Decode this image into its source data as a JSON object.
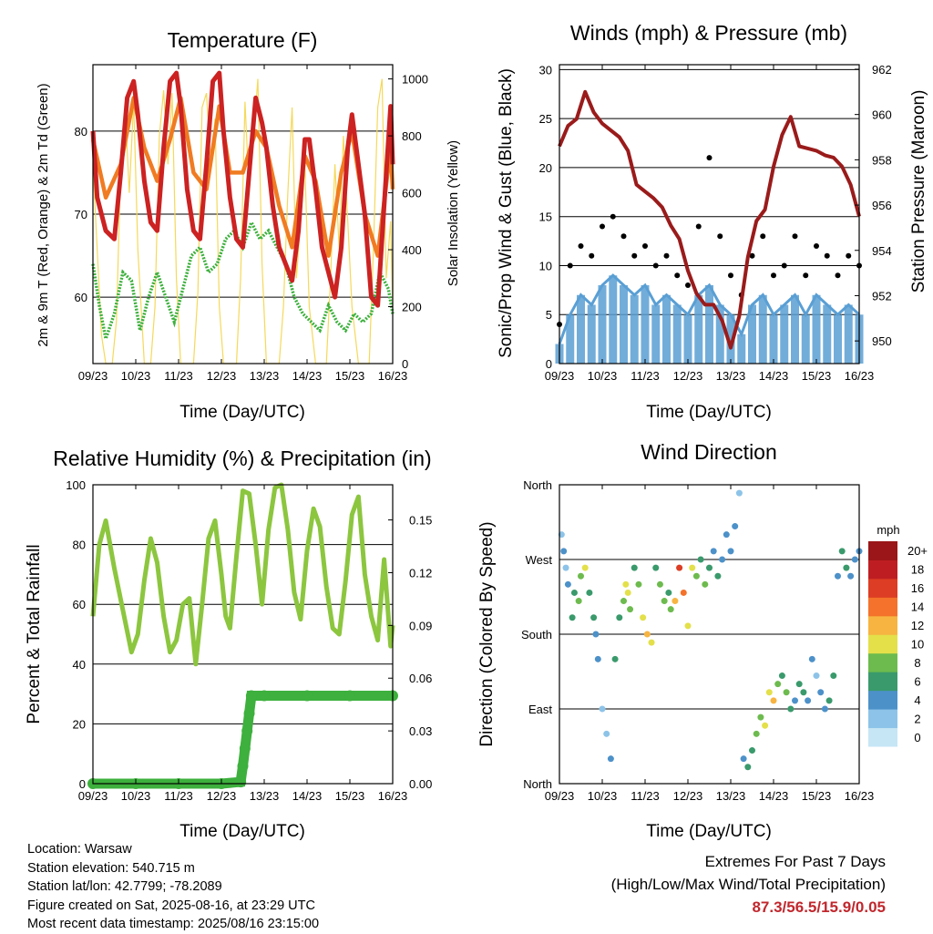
{
  "chart_data": [
    {
      "type": "line",
      "title": "Temperature (F)",
      "xlabel": "Time (Day/UTC)",
      "ylabel": "2m & 9m T (Red, Orange) & 2m Td (Green)",
      "ylabel_right": "Solar Insolation (Yellow)",
      "xticks": [
        "09/23",
        "10/23",
        "11/23",
        "12/23",
        "13/23",
        "14/23",
        "15/23",
        "16/23"
      ],
      "ylim": [
        52,
        88
      ],
      "yticks": [
        60,
        70,
        80
      ],
      "ylim_right": [
        0,
        1050
      ],
      "yticks_right": [
        0,
        200,
        400,
        600,
        800,
        1000
      ],
      "colors": {
        "t2m": "#cc2222",
        "t9m": "#f07b22",
        "td2m": "#3db03d",
        "solar": "#f5d95a"
      },
      "series": [
        {
          "name": "2m T",
          "x": [
            0,
            0.1,
            0.3,
            0.5,
            0.65,
            0.8,
            0.95,
            1.05,
            1.2,
            1.35,
            1.5,
            1.65,
            1.8,
            1.95,
            2.05,
            2.2,
            2.35,
            2.5,
            2.65,
            2.8,
            2.95,
            3.05,
            3.2,
            3.35,
            3.5,
            3.65,
            3.8,
            3.95,
            4.05,
            4.2,
            4.35,
            4.5,
            4.65,
            4.8,
            4.95,
            5.05,
            5.2,
            5.35,
            5.5,
            5.65,
            5.8,
            5.95,
            6.05,
            6.2,
            6.35,
            6.5,
            6.65,
            6.8,
            6.95,
            7.0
          ],
          "y": [
            80,
            72,
            68,
            67,
            75,
            84,
            86,
            82,
            74,
            69,
            68,
            78,
            86,
            87,
            83,
            73,
            68,
            67,
            76,
            86,
            87,
            80,
            72,
            67,
            66,
            75,
            84,
            81,
            78,
            71,
            66,
            64,
            62,
            68,
            79,
            79,
            73,
            66,
            63,
            60,
            66,
            78,
            82,
            76,
            70,
            60,
            59,
            71,
            83,
            76
          ]
        },
        {
          "name": "9m T",
          "x": [
            0,
            0.3,
            0.65,
            0.95,
            1.2,
            1.5,
            1.8,
            2.05,
            2.35,
            2.65,
            2.95,
            3.2,
            3.5,
            3.8,
            4.05,
            4.35,
            4.65,
            4.95,
            5.2,
            5.5,
            5.8,
            6.05,
            6.35,
            6.65,
            6.95,
            7.0
          ],
          "y": [
            79,
            72,
            76,
            84,
            78,
            74,
            79,
            84,
            75,
            73,
            83,
            75,
            75,
            80,
            78,
            71,
            66,
            77,
            74,
            65,
            75,
            80,
            70,
            65,
            78,
            73
          ]
        },
        {
          "name": "2m Td",
          "x": [
            0,
            0.15,
            0.3,
            0.5,
            0.7,
            0.9,
            1.1,
            1.3,
            1.5,
            1.7,
            1.9,
            2.1,
            2.3,
            2.5,
            2.7,
            2.9,
            3.1,
            3.3,
            3.5,
            3.7,
            3.9,
            4.1,
            4.3,
            4.5,
            4.7,
            4.9,
            5.1,
            5.3,
            5.5,
            5.7,
            5.9,
            6.1,
            6.3,
            6.5,
            6.7,
            6.9,
            7.0
          ],
          "y": [
            64,
            59,
            55,
            58,
            63,
            62,
            56,
            60,
            63,
            60,
            57,
            61,
            65,
            66,
            63,
            64,
            67,
            68,
            66,
            69,
            67,
            68,
            66,
            64,
            60,
            58,
            57,
            56,
            59,
            57,
            56,
            58,
            57,
            58,
            63,
            61,
            58
          ]
        },
        {
          "name": "Solar Insolation",
          "x": [
            0,
            0.1,
            0.2,
            0.3,
            0.45,
            0.55,
            0.65,
            0.75,
            0.85,
            0.95,
            1.05,
            1.2,
            1.35,
            1.45,
            1.55,
            1.65,
            1.75,
            1.85,
            1.95,
            2.05,
            2.2,
            2.35,
            2.45,
            2.55,
            2.65,
            2.75,
            2.85,
            2.95,
            3.05,
            3.2,
            3.35,
            3.45,
            3.55,
            3.65,
            3.75,
            3.85,
            3.95,
            4.05,
            4.2,
            4.35,
            4.45,
            4.55,
            4.65,
            4.75,
            4.85,
            4.95,
            5.05,
            5.2,
            5.35,
            5.45,
            5.55,
            5.65,
            5.75,
            5.85,
            5.95,
            6.05,
            6.2,
            6.35,
            6.45,
            6.55,
            6.65,
            6.75,
            6.85,
            6.95,
            7.0
          ],
          "y": [
            700,
            400,
            100,
            0,
            0,
            150,
            700,
            900,
            600,
            920,
            400,
            0,
            0,
            200,
            800,
            960,
            700,
            950,
            300,
            0,
            0,
            0,
            250,
            900,
            950,
            700,
            860,
            200,
            0,
            0,
            0,
            300,
            920,
            600,
            800,
            1000,
            350,
            0,
            0,
            0,
            200,
            600,
            900,
            300,
            500,
            700,
            200,
            0,
            0,
            0,
            300,
            700,
            400,
            800,
            500,
            200,
            0,
            0,
            0,
            400,
            900,
            1000,
            300,
            500,
            200
          ]
        }
      ]
    },
    {
      "type": "line",
      "title": "Winds (mph) & Pressure (mb)",
      "xlabel": "Time (Day/UTC)",
      "ylabel": "Sonic/Prop Wind & Gust (Blue, Black)",
      "ylabel_right": "Station Pressure (Maroon)",
      "xticks": [
        "09/23",
        "10/23",
        "11/23",
        "12/23",
        "13/23",
        "14/23",
        "15/23",
        "16/23"
      ],
      "ylim": [
        0,
        30.5
      ],
      "yticks": [
        0,
        5,
        10,
        15,
        20,
        25,
        30
      ],
      "ylim_right": [
        949,
        962.2
      ],
      "yticks_right": [
        950,
        952,
        954,
        956,
        958,
        960,
        962
      ],
      "colors": {
        "wind": "#5a9fd4",
        "gust": "#000000",
        "pressure": "#9a1b1b"
      },
      "series": [
        {
          "name": "Wind",
          "x": [
            0,
            0.25,
            0.5,
            0.75,
            1.0,
            1.25,
            1.5,
            1.75,
            2.0,
            2.25,
            2.5,
            2.75,
            3.0,
            3.25,
            3.5,
            3.75,
            4.0,
            4.25,
            4.5,
            4.75,
            5.0,
            5.25,
            5.5,
            5.75,
            6.0,
            6.25,
            6.5,
            6.75,
            7.0
          ],
          "y": [
            2,
            5,
            7,
            6,
            8,
            9,
            8,
            7,
            8,
            6,
            7,
            6,
            5,
            7,
            8,
            6,
            5,
            3,
            6,
            7,
            5,
            6,
            7,
            5,
            7,
            6,
            5,
            6,
            5
          ]
        },
        {
          "name": "Gust",
          "x": [
            0,
            0.25,
            0.5,
            0.75,
            1.0,
            1.25,
            1.5,
            1.75,
            2.0,
            2.25,
            2.5,
            2.75,
            3.0,
            3.25,
            3.5,
            3.75,
            4.0,
            4.25,
            4.5,
            4.75,
            5.0,
            5.25,
            5.5,
            5.75,
            6.0,
            6.25,
            6.5,
            6.75,
            7.0
          ],
          "y": [
            4,
            10,
            12,
            11,
            14,
            15,
            13,
            11,
            12,
            10,
            11,
            9,
            8,
            14,
            21,
            13,
            9,
            7,
            11,
            13,
            9,
            10,
            13,
            9,
            12,
            11,
            9,
            11,
            10
          ]
        },
        {
          "name": "Pressure",
          "x": [
            0,
            0.2,
            0.4,
            0.6,
            0.8,
            1.0,
            1.2,
            1.4,
            1.6,
            1.8,
            2.0,
            2.2,
            2.4,
            2.6,
            2.8,
            3.0,
            3.2,
            3.4,
            3.6,
            3.8,
            4.0,
            4.2,
            4.4,
            4.6,
            4.8,
            5.0,
            5.2,
            5.4,
            5.6,
            5.8,
            6.0,
            6.2,
            6.4,
            6.6,
            6.8,
            7.0
          ],
          "y": [
            958.6,
            959.5,
            959.8,
            961.0,
            960.1,
            959.6,
            959.3,
            959.0,
            958.4,
            956.9,
            956.6,
            956.3,
            955.9,
            955.1,
            954.5,
            953.1,
            952.1,
            951.6,
            951.6,
            950.9,
            949.7,
            951.1,
            953.7,
            955.3,
            955.8,
            957.7,
            959.1,
            959.9,
            958.6,
            958.5,
            958.4,
            958.2,
            958.1,
            957.7,
            956.9,
            955.5
          ]
        }
      ]
    },
    {
      "type": "line",
      "title": "Relative Humidity (%) & Precipitation (in)",
      "xlabel": "Time (Day/UTC)",
      "ylabel": "Percent & Total Rainfall",
      "xticks": [
        "09/23",
        "10/23",
        "11/23",
        "12/23",
        "13/23",
        "14/23",
        "15/23",
        "16/23"
      ],
      "ylim": [
        0,
        100
      ],
      "yticks": [
        0,
        20,
        40,
        60,
        80,
        100
      ],
      "ylim_right": [
        0,
        0.17
      ],
      "yticks_right": [
        "0.00",
        "0.03",
        "0.06",
        "0.09",
        "0.12",
        "0.15"
      ],
      "colors": {
        "rh": "#8cc63f",
        "precip": "#3db03d"
      },
      "series": [
        {
          "name": "Relative Humidity",
          "x": [
            0,
            0.15,
            0.3,
            0.5,
            0.7,
            0.9,
            1.05,
            1.2,
            1.35,
            1.5,
            1.65,
            1.8,
            1.95,
            2.1,
            2.25,
            2.4,
            2.55,
            2.7,
            2.85,
            3.0,
            3.1,
            3.2,
            3.35,
            3.5,
            3.65,
            3.8,
            3.95,
            4.1,
            4.25,
            4.4,
            4.55,
            4.7,
            4.85,
            5.0,
            5.15,
            5.3,
            5.45,
            5.6,
            5.75,
            5.9,
            6.05,
            6.2,
            6.35,
            6.5,
            6.65,
            6.8,
            6.95,
            7.0
          ],
          "y": [
            56,
            80,
            88,
            72,
            58,
            44,
            50,
            68,
            82,
            74,
            56,
            44,
            48,
            60,
            62,
            40,
            60,
            82,
            88,
            70,
            56,
            52,
            76,
            98,
            97,
            80,
            60,
            85,
            99,
            100,
            85,
            64,
            55,
            78,
            92,
            86,
            66,
            52,
            50,
            68,
            90,
            96,
            70,
            56,
            48,
            75,
            46,
            53
          ]
        },
        {
          "name": "Precipitation",
          "x": [
            0,
            1.0,
            2.0,
            3.0,
            3.45,
            3.5,
            3.55,
            3.6,
            3.65,
            3.7,
            4.0,
            5.0,
            6.0,
            7.0
          ],
          "y": [
            0,
            0,
            0,
            0,
            0.001,
            0.01,
            0.02,
            0.03,
            0.04,
            0.05,
            0.05,
            0.05,
            0.05,
            0.05
          ]
        }
      ]
    },
    {
      "type": "scatter",
      "title": "Wind Direction",
      "xlabel": "Time (Day/UTC)",
      "ylabel": "Direction (Colored By Speed)",
      "xticks": [
        "09/23",
        "10/23",
        "11/23",
        "12/23",
        "13/23",
        "14/23",
        "15/23",
        "16/23"
      ],
      "ylim": [
        0,
        360
      ],
      "yticks": [
        "North",
        "East",
        "South",
        "West",
        "North"
      ],
      "colorbar": {
        "title": "mph",
        "labels": [
          "0",
          "2",
          "4",
          "6",
          "8",
          "10",
          "12",
          "14",
          "16",
          "18",
          "20+"
        ],
        "colors": [
          "#c6e6f5",
          "#8dc3e8",
          "#4d91c9",
          "#3a9a6c",
          "#6dbb4e",
          "#e3e04a",
          "#f7b441",
          "#f4722b",
          "#dc3d24",
          "#be1e22",
          "#9a1618"
        ]
      },
      "x": [
        0.05,
        0.1,
        0.15,
        0.2,
        0.3,
        0.35,
        0.45,
        0.5,
        0.6,
        0.7,
        0.8,
        0.85,
        0.9,
        1.0,
        1.1,
        1.2,
        1.3,
        1.4,
        1.5,
        1.55,
        1.6,
        1.65,
        1.75,
        1.85,
        1.95,
        2.05,
        2.15,
        2.25,
        2.35,
        2.45,
        2.55,
        2.6,
        2.7,
        2.8,
        2.9,
        3.0,
        3.1,
        3.2,
        3.3,
        3.4,
        3.5,
        3.6,
        3.7,
        3.8,
        3.9,
        4.0,
        4.1,
        4.2,
        4.3,
        4.4,
        4.5,
        4.6,
        4.7,
        4.8,
        4.9,
        5.0,
        5.1,
        5.2,
        5.3,
        5.4,
        5.5,
        5.6,
        5.7,
        5.8,
        5.9,
        6.0,
        6.1,
        6.2,
        6.3,
        6.4,
        6.5,
        6.6,
        6.7,
        6.8,
        6.9,
        7.0
      ],
      "y": [
        300,
        280,
        260,
        240,
        200,
        230,
        220,
        250,
        260,
        230,
        200,
        180,
        150,
        90,
        60,
        30,
        150,
        200,
        220,
        240,
        230,
        210,
        260,
        240,
        200,
        180,
        170,
        260,
        240,
        220,
        230,
        210,
        220,
        260,
        230,
        190,
        260,
        250,
        270,
        240,
        260,
        280,
        250,
        270,
        300,
        280,
        310,
        350,
        30,
        20,
        40,
        60,
        80,
        70,
        110,
        100,
        120,
        130,
        110,
        90,
        100,
        120,
        110,
        100,
        150,
        130,
        110,
        90,
        100,
        130,
        250,
        280,
        260,
        250,
        270,
        280
      ],
      "speed": [
        2,
        3,
        2,
        4,
        6,
        5,
        8,
        7,
        9,
        6,
        5,
        3,
        4,
        2,
        1,
        4,
        5,
        6,
        8,
        10,
        9,
        7,
        6,
        8,
        10,
        11,
        9,
        5,
        7,
        8,
        6,
        7,
        12,
        15,
        13,
        10,
        9,
        8,
        6,
        7,
        5,
        4,
        5,
        3,
        4,
        3,
        4,
        2,
        3,
        5,
        6,
        7,
        8,
        9,
        10,
        11,
        8,
        6,
        7,
        5,
        4,
        5,
        6,
        4,
        3,
        2,
        3,
        4,
        5,
        6,
        4,
        5,
        6,
        4,
        3,
        4
      ]
    }
  ],
  "info": {
    "location": "Location: Warsaw",
    "elevation": "Station elevation: 540.715 m",
    "latlon": "Station lat/lon: 42.7799; -78.2089",
    "created": "Figure created on Sat, 2025-08-16, at 23:29 UTC",
    "timestamp": "Most recent data timestamp: 2025/08/16 23:15:00"
  },
  "extremes": {
    "line1": "Extremes For Past 7 Days",
    "line2": "(High/Low/Max Wind/Total Precipitation)",
    "values": "87.3/56.5/15.9/0.05"
  }
}
